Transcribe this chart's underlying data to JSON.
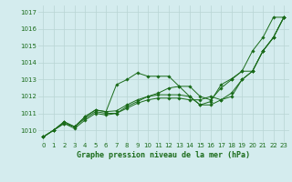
{
  "background_color": "#d4ecee",
  "grid_color": "#b8d4d4",
  "line_color": "#1a6b1a",
  "title": "Graphe pression niveau de la mer (hPa)",
  "xlim": [
    -0.5,
    23.5
  ],
  "ylim": [
    1009.3,
    1017.4
  ],
  "yticks": [
    1010,
    1011,
    1012,
    1013,
    1014,
    1015,
    1016,
    1017
  ],
  "xticks": [
    0,
    1,
    2,
    3,
    4,
    5,
    6,
    7,
    8,
    9,
    10,
    11,
    12,
    13,
    14,
    15,
    16,
    17,
    18,
    19,
    20,
    21,
    22,
    23
  ],
  "series": [
    [
      1009.6,
      1010.0,
      1010.5,
      1010.2,
      1010.8,
      1011.2,
      1011.1,
      1012.7,
      1013.0,
      1013.4,
      1013.2,
      1013.2,
      1013.2,
      1012.6,
      1012.0,
      1011.5,
      1011.7,
      1012.7,
      1013.05,
      1013.5,
      1014.7,
      1015.5,
      1016.7,
      1016.7
    ],
    [
      1009.6,
      1010.0,
      1010.5,
      1010.2,
      1010.8,
      1011.2,
      1011.1,
      1011.15,
      1011.5,
      1011.8,
      1012.0,
      1012.2,
      1012.5,
      1012.6,
      1012.6,
      1012.0,
      1011.8,
      1012.5,
      1013.0,
      1013.5,
      1013.5,
      1014.7,
      1015.5,
      1016.7
    ],
    [
      1009.6,
      1010.0,
      1010.4,
      1010.2,
      1010.7,
      1011.1,
      1011.0,
      1011.0,
      1011.4,
      1011.7,
      1012.0,
      1012.1,
      1012.1,
      1012.1,
      1012.0,
      1011.5,
      1011.5,
      1011.8,
      1012.2,
      1013.0,
      1013.5,
      1014.7,
      1015.5,
      1016.7
    ],
    [
      1009.6,
      1010.0,
      1010.4,
      1010.1,
      1010.6,
      1011.0,
      1010.9,
      1011.0,
      1011.3,
      1011.6,
      1011.8,
      1011.9,
      1011.9,
      1011.9,
      1011.8,
      1011.8,
      1012.0,
      1011.8,
      1012.0,
      1013.0,
      1013.5,
      1014.7,
      1015.5,
      1016.7
    ]
  ],
  "title_fontsize": 6.0,
  "tick_fontsize": 5.0
}
